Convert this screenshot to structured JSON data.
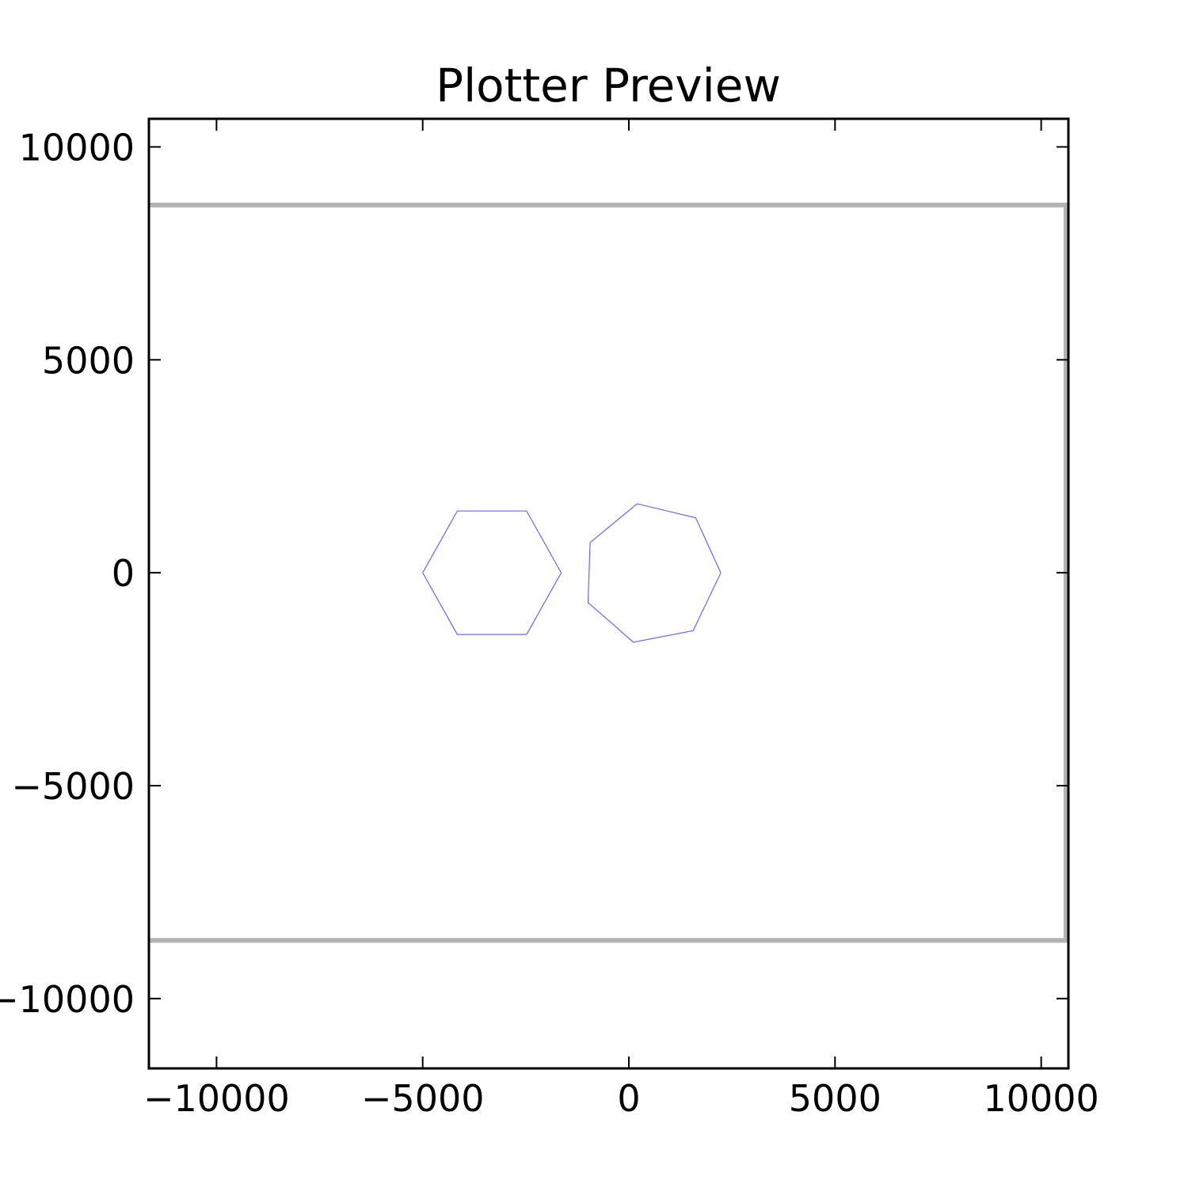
{
  "chart_data": {
    "type": "line",
    "title": "Plotter Preview",
    "xlabel": "",
    "ylabel": "",
    "xlim": [
      -11640,
      10660
    ],
    "ylim": [
      -11640,
      10660
    ],
    "x_ticks": [
      -10000,
      -5000,
      0,
      5000,
      10000
    ],
    "y_ticks": [
      -10000,
      -5000,
      0,
      5000,
      10000
    ],
    "x_tick_labels": [
      "−10000",
      "−5000",
      "0",
      "5000",
      "10000"
    ],
    "y_tick_labels": [
      "−10000",
      "−5000",
      "0",
      "5000",
      "10000"
    ],
    "grid": false,
    "colors": {
      "boundary": "#b3b3b3",
      "shape": "#6666ff",
      "axes": "#000000"
    },
    "boundary_lines": [
      {
        "x": [
          -11640,
          10660
        ],
        "y": [
          8634,
          8634
        ]
      },
      {
        "x": [
          -11640,
          10660
        ],
        "y": [
          -8634,
          -8634
        ]
      },
      {
        "x": [
          10600,
          10600
        ],
        "y": [
          8634,
          -8634
        ]
      }
    ],
    "series": [
      {
        "points": [
          [
            -5000,
            0
          ],
          [
            -4160,
            1450
          ],
          [
            -2480,
            1450
          ],
          [
            -1640,
            0
          ],
          [
            -2480,
            -1450
          ],
          [
            -4160,
            -1450
          ],
          [
            -5000,
            0
          ]
        ]
      },
      {
        "points": [
          [
            2230,
            0
          ],
          [
            1620,
            1290
          ],
          [
            200,
            1620
          ],
          [
            -940,
            710
          ],
          [
            -990,
            -700
          ],
          [
            110,
            -1630
          ],
          [
            1560,
            -1360
          ],
          [
            2230,
            0
          ]
        ]
      }
    ]
  }
}
